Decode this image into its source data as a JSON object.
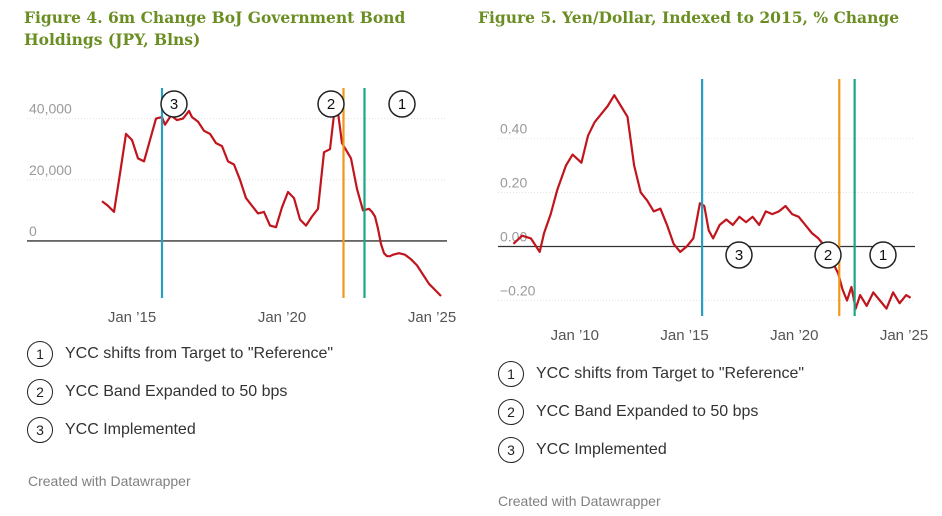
{
  "chart_data": [
    {
      "type": "line",
      "title": "Figure 4. 6m Change BoJ Government Bond Holdings (JPY, Blns)",
      "xlim": [
        2011.5,
        2025.5
      ],
      "ylim": [
        -18000,
        50000
      ],
      "y_ticks": [
        0,
        20000,
        40000
      ],
      "y_tick_labels": [
        "0",
        "20,000",
        "40,000"
      ],
      "x_ticks": [
        2015,
        2020,
        2025
      ],
      "x_tick_labels": [
        "Jan ’15",
        "Jan ’20",
        "Jan ’25"
      ],
      "series": [
        {
          "color": "#c0151c",
          "x": [
            2014.0,
            2014.2,
            2014.4,
            2014.6,
            2014.8,
            2015.0,
            2015.2,
            2015.4,
            2015.6,
            2015.8,
            2016.0,
            2016.1,
            2016.3,
            2016.5,
            2016.7,
            2016.9,
            2017.0,
            2017.2,
            2017.4,
            2017.6,
            2017.8,
            2018.0,
            2018.2,
            2018.4,
            2018.6,
            2018.8,
            2019.0,
            2019.2,
            2019.4,
            2019.6,
            2019.8,
            2020.0,
            2020.2,
            2020.4,
            2020.6,
            2020.8,
            2021.0,
            2021.2,
            2021.4,
            2021.6,
            2021.8,
            2022.0,
            2022.3,
            2022.5,
            2022.7,
            2022.9,
            2023.0,
            2023.1,
            2023.2,
            2023.3,
            2023.4,
            2023.5,
            2023.6,
            2023.7,
            2023.9,
            2024.1,
            2024.3,
            2024.5,
            2024.7,
            2024.9,
            2025.1,
            2025.3
          ],
          "values": [
            13000,
            11500,
            9500,
            22000,
            35000,
            33000,
            27000,
            26000,
            33000,
            40000,
            40500,
            38000,
            41000,
            39500,
            40000,
            42500,
            40500,
            39000,
            36000,
            35000,
            32000,
            31000,
            26000,
            25000,
            20000,
            14000,
            11500,
            9000,
            9500,
            5000,
            4500,
            11000,
            16000,
            14000,
            7000,
            5000,
            8000,
            10500,
            29000,
            30000,
            47000,
            32000,
            27000,
            17000,
            10000,
            10500,
            9500,
            8000,
            4000,
            -1000,
            -4000,
            -5000,
            -5000,
            -4500,
            -4000,
            -4500,
            -6000,
            -8000,
            -11000,
            -14000,
            -16000,
            -18000
          ]
        }
      ],
      "vertical_markers": [
        {
          "x": 2016.0,
          "color": "#2a9ec1",
          "annotation": "3"
        },
        {
          "x": 2022.05,
          "color": "#f39719",
          "annotation": "2"
        },
        {
          "x": 2022.75,
          "color": "#1aa884",
          "annotation": "1"
        }
      ],
      "zero_line": true,
      "grid": "horizontal"
    },
    {
      "type": "line",
      "title": "Figure 5. Yen/Dollar, Indexed to 2015, % Change",
      "xlim": [
        2006.5,
        2025.5
      ],
      "ylim": [
        -0.25,
        0.62
      ],
      "y_ticks": [
        -0.2,
        0.0,
        0.2,
        0.4
      ],
      "y_tick_labels": [
        "−0.20",
        "0.00",
        "0.20",
        "0.40"
      ],
      "x_ticks": [
        2010,
        2015,
        2020,
        2025
      ],
      "x_tick_labels": [
        "Jan ’10",
        "Jan ’15",
        "Jan ’20",
        "Jan ’25"
      ],
      "series": [
        {
          "color": "#c0151c",
          "x": [
            2007.2,
            2007.6,
            2008.0,
            2008.4,
            2008.6,
            2008.9,
            2009.2,
            2009.6,
            2009.9,
            2010.3,
            2010.6,
            2010.9,
            2011.2,
            2011.5,
            2011.8,
            2012.1,
            2012.4,
            2012.7,
            2013.0,
            2013.3,
            2013.6,
            2013.9,
            2014.2,
            2014.5,
            2014.8,
            2015.1,
            2015.4,
            2015.7,
            2015.9,
            2016.1,
            2016.3,
            2016.6,
            2016.9,
            2017.2,
            2017.5,
            2017.8,
            2018.1,
            2018.4,
            2018.7,
            2019.0,
            2019.3,
            2019.6,
            2019.9,
            2020.2,
            2020.5,
            2020.8,
            2021.1,
            2021.4,
            2021.7,
            2022.0,
            2022.2,
            2022.4,
            2022.6,
            2022.8,
            2023.0,
            2023.3,
            2023.6,
            2023.9,
            2024.2,
            2024.5,
            2024.8,
            2025.1,
            2025.3
          ],
          "values": [
            0.01,
            0.04,
            0.03,
            -0.02,
            0.05,
            0.12,
            0.21,
            0.3,
            0.34,
            0.31,
            0.41,
            0.46,
            0.49,
            0.52,
            0.56,
            0.52,
            0.48,
            0.3,
            0.2,
            0.17,
            0.13,
            0.14,
            0.08,
            0.01,
            -0.02,
            0.0,
            0.03,
            0.16,
            0.15,
            0.06,
            0.03,
            0.08,
            0.1,
            0.08,
            0.11,
            0.09,
            0.11,
            0.08,
            0.13,
            0.12,
            0.13,
            0.15,
            0.12,
            0.11,
            0.08,
            0.05,
            0.03,
            0.0,
            -0.05,
            -0.1,
            -0.16,
            -0.2,
            -0.15,
            -0.23,
            -0.18,
            -0.22,
            -0.17,
            -0.2,
            -0.23,
            -0.17,
            -0.21,
            -0.18,
            -0.19
          ]
        }
      ],
      "vertical_markers": [
        {
          "x": 2015.8,
          "color": "#2a9ec1",
          "annotation": "3",
          "annotation_y": -0.04
        },
        {
          "x": 2022.05,
          "color": "#f39719",
          "annotation": "2",
          "annotation_y": -0.04
        },
        {
          "x": 2022.75,
          "color": "#1aa884",
          "annotation": "1",
          "annotation_y": -0.04
        }
      ],
      "zero_line": true,
      "grid": "horizontal"
    }
  ],
  "figures": {
    "left": {
      "title": "Figure 4. 6m Change BoJ Government Bond Holdings (JPY, Blns)",
      "legend": [
        {
          "num": "1",
          "text": "YCC shifts from Target to \"Reference\""
        },
        {
          "num": "2",
          "text": "YCC Band Expanded to 50 bps"
        },
        {
          "num": "3",
          "text": "YCC Implemented"
        }
      ],
      "credit": "Created with Datawrapper"
    },
    "right": {
      "title": "Figure 5. Yen/Dollar, Indexed to 2015, % Change",
      "legend": [
        {
          "num": "1",
          "text": "YCC shifts from Target to \"Reference\""
        },
        {
          "num": "2",
          "text": "YCC Band Expanded to 50 bps"
        },
        {
          "num": "3",
          "text": "YCC Implemented"
        }
      ],
      "credit": "Created with Datawrapper"
    }
  }
}
